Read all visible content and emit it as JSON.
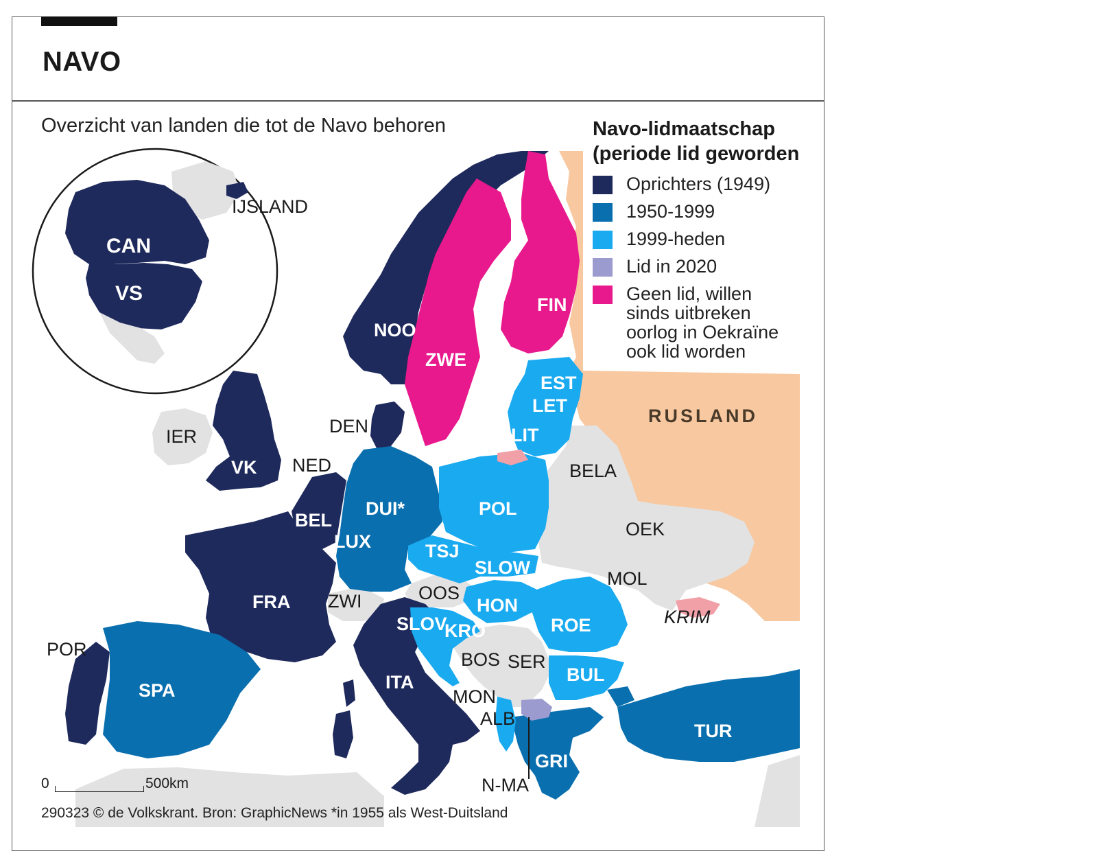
{
  "header": {
    "title": "NAVO"
  },
  "subtitle": "Overzicht van landen die tot de Navo behoren",
  "legend": {
    "title_line1": "Navo-lidmaatschap",
    "title_line2": "(periode lid geworden",
    "items": [
      {
        "label": "Oprichters (1949)",
        "color": "#1f2a5c"
      },
      {
        "label": "1950-1999",
        "color": "#0a6fae"
      },
      {
        "label": "1999-heden",
        "color": "#1aaaf0"
      },
      {
        "label": "Lid in 2020",
        "color": "#9b9bcf"
      },
      {
        "label": "Geen lid, willen sinds uitbreken oorlog in Oekraïne ook lid worden",
        "color": "#e8188d"
      }
    ]
  },
  "colors": {
    "founders": "#1f2a5c",
    "member_1950_1999": "#0a6fae",
    "member_1999_now": "#1aaaf0",
    "member_2020": "#9b9bcf",
    "candidate": "#e8188d",
    "russia": "#f8c8a0",
    "non_member": "#e2e2e3",
    "sea": "#ffffff",
    "disputed": "#f2a0a8"
  },
  "labels": {
    "ijsland": "IJSLAND",
    "can": "CAN",
    "vs": "VS",
    "noo": "NOO",
    "zwe": "ZWE",
    "fin": "FIN",
    "est": "EST",
    "let": "LET",
    "lit": "LIT",
    "rusland": "RUSLAND",
    "den": "DEN",
    "ier": "IER",
    "vk": "VK",
    "ned": "NED",
    "bela": "BELA",
    "bel": "BEL",
    "dui": "DUI*",
    "pol": "POL",
    "lux": "LUX",
    "oek": "OEK",
    "tsj": "TSJ",
    "slow": "SLOW",
    "mol": "MOL",
    "oos": "OOS",
    "fra": "FRA",
    "zwi": "ZWI",
    "hon": "HON",
    "roe": "ROE",
    "krim": "KRIM",
    "slov": "SLOV",
    "kro": "KRO",
    "por": "POR",
    "bos": "BOS",
    "ser": "SER",
    "spa": "SPA",
    "ita": "ITA",
    "bul": "BUL",
    "mon": "MON",
    "alb": "ALB",
    "tur": "TUR",
    "gri": "GRI",
    "nma": "N-MA"
  },
  "scale": {
    "zero": "0",
    "end": "500km"
  },
  "source": "290323 © de Volkskrant. Bron: GraphicNews *in 1955 als West-Duitsland"
}
